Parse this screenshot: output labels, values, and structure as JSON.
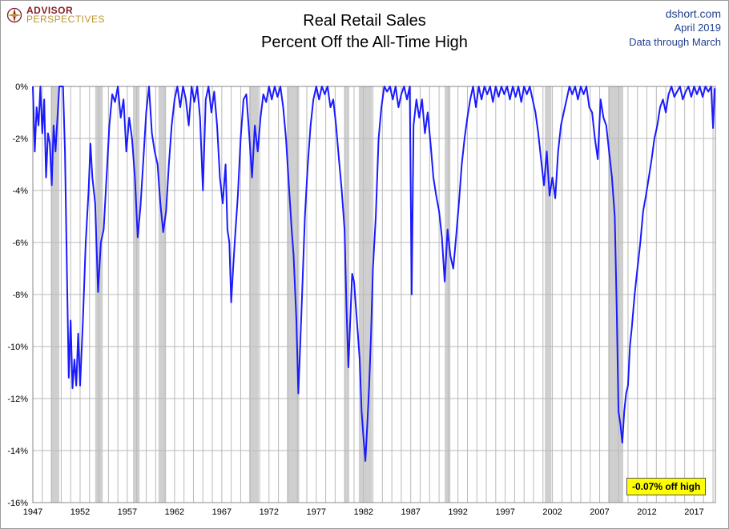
{
  "logo": {
    "line1": "ADVISOR",
    "line2": "PERSPECTIVES"
  },
  "title": {
    "line1": "Real Retail Sales",
    "line2": "Percent Off the All-Time High"
  },
  "source": {
    "site": "dshort.com",
    "date": "April 2019",
    "note": "Data through March"
  },
  "callout": "-0.07% off high",
  "colors": {
    "line": "#1a1aff",
    "recession": "#cfcfcf",
    "grid": "#b9b9b9",
    "callout_bg": "#ffff00",
    "source_text": "#1f3f8f"
  },
  "chart_data": {
    "type": "line",
    "title": "Real Retail Sales — Percent Off the All-Time High",
    "xlabel": "",
    "ylabel": "",
    "xlim": [
      1947.0,
      2019.25
    ],
    "ylim": [
      -16,
      0
    ],
    "y_ticks": [
      0,
      -2,
      -4,
      -6,
      -8,
      -10,
      -12,
      -14,
      -16
    ],
    "y_tick_labels": [
      "0%",
      "-2%",
      "-4%",
      "-6%",
      "-8%",
      "-10%",
      "-12%",
      "-14%",
      "-16%"
    ],
    "x_ticks": [
      1947,
      1952,
      1957,
      1962,
      1967,
      1972,
      1977,
      1982,
      1987,
      1992,
      1997,
      2002,
      2007,
      2012,
      2017
    ],
    "x_tick_labels": [
      "1947",
      "1952",
      "1957",
      "1962",
      "1967",
      "1972",
      "1977",
      "1982",
      "1987",
      "1992",
      "1997",
      "2002",
      "2007",
      "2012",
      "2017"
    ],
    "grid": true,
    "recessions": [
      [
        1948.9,
        1949.8
      ],
      [
        1953.6,
        1954.4
      ],
      [
        1957.6,
        1958.3
      ],
      [
        1960.3,
        1961.1
      ],
      [
        1969.9,
        1970.9
      ],
      [
        1973.9,
        1975.2
      ],
      [
        1980.0,
        1980.5
      ],
      [
        1981.5,
        1982.9
      ],
      [
        1990.6,
        1991.2
      ],
      [
        2001.2,
        2001.9
      ],
      [
        2007.9,
        2009.5
      ]
    ],
    "series": [
      {
        "name": "Real Retail Sales % off all-time high",
        "points": [
          [
            1947.0,
            0
          ],
          [
            1947.2,
            -2.5
          ],
          [
            1947.4,
            -0.8
          ],
          [
            1947.6,
            -1.5
          ],
          [
            1947.8,
            0
          ],
          [
            1948.0,
            -1.8
          ],
          [
            1948.2,
            -0.5
          ],
          [
            1948.4,
            -3.5
          ],
          [
            1948.6,
            -1.8
          ],
          [
            1948.8,
            -2.2
          ],
          [
            1949.0,
            -3.8
          ],
          [
            1949.2,
            -1.5
          ],
          [
            1949.4,
            -2.5
          ],
          [
            1949.6,
            -1.2
          ],
          [
            1949.8,
            0
          ],
          [
            1950.2,
            0
          ],
          [
            1950.4,
            -2.5
          ],
          [
            1950.6,
            -7.0
          ],
          [
            1950.8,
            -11.2
          ],
          [
            1951.0,
            -9.0
          ],
          [
            1951.2,
            -11.6
          ],
          [
            1951.4,
            -10.5
          ],
          [
            1951.6,
            -11.5
          ],
          [
            1951.8,
            -9.5
          ],
          [
            1952.0,
            -11.5
          ],
          [
            1952.3,
            -9.0
          ],
          [
            1952.6,
            -6.0
          ],
          [
            1952.9,
            -4.0
          ],
          [
            1953.1,
            -2.2
          ],
          [
            1953.3,
            -3.5
          ],
          [
            1953.6,
            -4.5
          ],
          [
            1953.9,
            -7.9
          ],
          [
            1954.2,
            -6.0
          ],
          [
            1954.5,
            -5.5
          ],
          [
            1954.8,
            -3.5
          ],
          [
            1955.1,
            -1.5
          ],
          [
            1955.4,
            -0.3
          ],
          [
            1955.7,
            -0.6
          ],
          [
            1956.0,
            0
          ],
          [
            1956.3,
            -1.2
          ],
          [
            1956.6,
            -0.5
          ],
          [
            1956.9,
            -2.5
          ],
          [
            1957.2,
            -1.2
          ],
          [
            1957.5,
            -2.0
          ],
          [
            1957.8,
            -3.5
          ],
          [
            1958.1,
            -5.8
          ],
          [
            1958.4,
            -4.6
          ],
          [
            1958.7,
            -2.8
          ],
          [
            1959.0,
            -1.0
          ],
          [
            1959.3,
            0
          ],
          [
            1959.6,
            -1.8
          ],
          [
            1959.9,
            -2.5
          ],
          [
            1960.2,
            -3.0
          ],
          [
            1960.5,
            -4.5
          ],
          [
            1960.8,
            -5.6
          ],
          [
            1961.1,
            -4.8
          ],
          [
            1961.4,
            -3.0
          ],
          [
            1961.7,
            -1.5
          ],
          [
            1962.0,
            -0.5
          ],
          [
            1962.3,
            0
          ],
          [
            1962.6,
            -0.8
          ],
          [
            1962.9,
            0
          ],
          [
            1963.2,
            -0.5
          ],
          [
            1963.5,
            -1.5
          ],
          [
            1963.8,
            0
          ],
          [
            1964.1,
            -0.6
          ],
          [
            1964.4,
            0
          ],
          [
            1964.7,
            -1.2
          ],
          [
            1965.0,
            -4.0
          ],
          [
            1965.3,
            -0.5
          ],
          [
            1965.6,
            0
          ],
          [
            1965.9,
            -1.0
          ],
          [
            1966.2,
            -0.2
          ],
          [
            1966.5,
            -1.5
          ],
          [
            1966.8,
            -3.5
          ],
          [
            1967.1,
            -4.5
          ],
          [
            1967.4,
            -3.0
          ],
          [
            1967.6,
            -5.5
          ],
          [
            1967.8,
            -6.0
          ],
          [
            1968.0,
            -8.3
          ],
          [
            1968.2,
            -7.0
          ],
          [
            1968.4,
            -5.8
          ],
          [
            1968.7,
            -4.2
          ],
          [
            1969.0,
            -2.0
          ],
          [
            1969.3,
            -0.5
          ],
          [
            1969.6,
            -0.3
          ],
          [
            1969.9,
            -1.8
          ],
          [
            1970.2,
            -3.5
          ],
          [
            1970.5,
            -1.5
          ],
          [
            1970.8,
            -2.5
          ],
          [
            1971.1,
            -1.2
          ],
          [
            1971.4,
            -0.3
          ],
          [
            1971.7,
            -0.6
          ],
          [
            1972.0,
            0
          ],
          [
            1972.3,
            -0.5
          ],
          [
            1972.6,
            0
          ],
          [
            1972.9,
            -0.4
          ],
          [
            1973.2,
            0
          ],
          [
            1973.5,
            -0.8
          ],
          [
            1973.8,
            -2.0
          ],
          [
            1974.1,
            -3.8
          ],
          [
            1974.4,
            -5.5
          ],
          [
            1974.6,
            -6.5
          ],
          [
            1974.9,
            -9.0
          ],
          [
            1975.1,
            -11.8
          ],
          [
            1975.3,
            -10.0
          ],
          [
            1975.5,
            -8.0
          ],
          [
            1975.8,
            -5.0
          ],
          [
            1976.1,
            -3.0
          ],
          [
            1976.4,
            -1.5
          ],
          [
            1976.7,
            -0.5
          ],
          [
            1977.0,
            0
          ],
          [
            1977.3,
            -0.5
          ],
          [
            1977.6,
            0
          ],
          [
            1977.9,
            -0.3
          ],
          [
            1978.2,
            0
          ],
          [
            1978.5,
            -0.8
          ],
          [
            1978.8,
            -0.5
          ],
          [
            1979.1,
            -1.5
          ],
          [
            1979.4,
            -2.8
          ],
          [
            1979.7,
            -4.0
          ],
          [
            1980.0,
            -5.5
          ],
          [
            1980.2,
            -8.5
          ],
          [
            1980.4,
            -10.8
          ],
          [
            1980.6,
            -9.0
          ],
          [
            1980.8,
            -7.2
          ],
          [
            1981.0,
            -7.5
          ],
          [
            1981.2,
            -8.5
          ],
          [
            1981.4,
            -9.5
          ],
          [
            1981.6,
            -10.5
          ],
          [
            1981.8,
            -12.5
          ],
          [
            1982.0,
            -13.5
          ],
          [
            1982.2,
            -14.4
          ],
          [
            1982.4,
            -13.0
          ],
          [
            1982.6,
            -11.5
          ],
          [
            1982.8,
            -9.5
          ],
          [
            1983.0,
            -7.0
          ],
          [
            1983.3,
            -5.0
          ],
          [
            1983.6,
            -2.0
          ],
          [
            1983.9,
            -0.8
          ],
          [
            1984.2,
            0
          ],
          [
            1984.5,
            -0.2
          ],
          [
            1984.8,
            0
          ],
          [
            1985.1,
            -0.5
          ],
          [
            1985.4,
            0
          ],
          [
            1985.7,
            -0.8
          ],
          [
            1986.0,
            -0.3
          ],
          [
            1986.3,
            0
          ],
          [
            1986.6,
            -0.5
          ],
          [
            1986.9,
            0
          ],
          [
            1987.1,
            -8.0
          ],
          [
            1987.3,
            -1.5
          ],
          [
            1987.6,
            -0.5
          ],
          [
            1987.9,
            -1.2
          ],
          [
            1988.2,
            -0.5
          ],
          [
            1988.5,
            -1.8
          ],
          [
            1988.8,
            -1.0
          ],
          [
            1989.1,
            -2.2
          ],
          [
            1989.4,
            -3.5
          ],
          [
            1989.7,
            -4.2
          ],
          [
            1990.0,
            -4.8
          ],
          [
            1990.3,
            -5.8
          ],
          [
            1990.6,
            -7.5
          ],
          [
            1990.9,
            -5.5
          ],
          [
            1991.2,
            -6.5
          ],
          [
            1991.5,
            -7.0
          ],
          [
            1991.8,
            -5.8
          ],
          [
            1992.1,
            -4.5
          ],
          [
            1992.4,
            -3.0
          ],
          [
            1992.7,
            -2.0
          ],
          [
            1993.0,
            -1.2
          ],
          [
            1993.3,
            -0.5
          ],
          [
            1993.6,
            0
          ],
          [
            1993.9,
            -0.8
          ],
          [
            1994.2,
            0
          ],
          [
            1994.5,
            -0.5
          ],
          [
            1994.8,
            0
          ],
          [
            1995.1,
            -0.3
          ],
          [
            1995.4,
            0
          ],
          [
            1995.7,
            -0.6
          ],
          [
            1996.0,
            0
          ],
          [
            1996.3,
            -0.4
          ],
          [
            1996.6,
            0
          ],
          [
            1996.9,
            -0.3
          ],
          [
            1997.2,
            0
          ],
          [
            1997.5,
            -0.5
          ],
          [
            1997.8,
            0
          ],
          [
            1998.1,
            -0.4
          ],
          [
            1998.4,
            0
          ],
          [
            1998.7,
            -0.6
          ],
          [
            1999.0,
            0
          ],
          [
            1999.3,
            -0.3
          ],
          [
            1999.6,
            0
          ],
          [
            1999.9,
            -0.5
          ],
          [
            2000.2,
            -1.0
          ],
          [
            2000.5,
            -1.8
          ],
          [
            2000.8,
            -2.8
          ],
          [
            2001.1,
            -3.8
          ],
          [
            2001.4,
            -2.5
          ],
          [
            2001.7,
            -4.2
          ],
          [
            2002.0,
            -3.5
          ],
          [
            2002.3,
            -4.3
          ],
          [
            2002.6,
            -2.5
          ],
          [
            2002.9,
            -1.5
          ],
          [
            2003.2,
            -1.0
          ],
          [
            2003.5,
            -0.5
          ],
          [
            2003.8,
            0
          ],
          [
            2004.1,
            -0.3
          ],
          [
            2004.4,
            0
          ],
          [
            2004.7,
            -0.5
          ],
          [
            2005.0,
            0
          ],
          [
            2005.3,
            -0.3
          ],
          [
            2005.6,
            0
          ],
          [
            2005.9,
            -0.8
          ],
          [
            2006.2,
            -1.0
          ],
          [
            2006.5,
            -2.0
          ],
          [
            2006.8,
            -2.8
          ],
          [
            2007.1,
            -0.5
          ],
          [
            2007.4,
            -1.2
          ],
          [
            2007.7,
            -1.5
          ],
          [
            2008.0,
            -2.5
          ],
          [
            2008.3,
            -3.5
          ],
          [
            2008.6,
            -5.0
          ],
          [
            2008.8,
            -8.5
          ],
          [
            2009.0,
            -12.5
          ],
          [
            2009.2,
            -13.0
          ],
          [
            2009.4,
            -13.7
          ],
          [
            2009.6,
            -12.5
          ],
          [
            2009.8,
            -11.8
          ],
          [
            2010.0,
            -11.5
          ],
          [
            2010.2,
            -10.0
          ],
          [
            2010.4,
            -9.3
          ],
          [
            2010.7,
            -8.0
          ],
          [
            2011.0,
            -7.0
          ],
          [
            2011.3,
            -6.0
          ],
          [
            2011.6,
            -4.8
          ],
          [
            2011.9,
            -4.2
          ],
          [
            2012.2,
            -3.5
          ],
          [
            2012.5,
            -2.8
          ],
          [
            2012.8,
            -2.0
          ],
          [
            2013.1,
            -1.5
          ],
          [
            2013.4,
            -0.8
          ],
          [
            2013.7,
            -0.5
          ],
          [
            2014.0,
            -1.0
          ],
          [
            2014.3,
            -0.3
          ],
          [
            2014.6,
            0
          ],
          [
            2014.9,
            -0.4
          ],
          [
            2015.2,
            -0.2
          ],
          [
            2015.5,
            0
          ],
          [
            2015.8,
            -0.5
          ],
          [
            2016.1,
            -0.2
          ],
          [
            2016.4,
            0
          ],
          [
            2016.7,
            -0.4
          ],
          [
            2017.0,
            0
          ],
          [
            2017.3,
            -0.3
          ],
          [
            2017.6,
            0
          ],
          [
            2017.9,
            -0.4
          ],
          [
            2018.2,
            0
          ],
          [
            2018.5,
            -0.2
          ],
          [
            2018.8,
            0
          ],
          [
            2019.0,
            -1.6
          ],
          [
            2019.1,
            -0.8
          ],
          [
            2019.17,
            -0.07
          ]
        ]
      }
    ]
  }
}
